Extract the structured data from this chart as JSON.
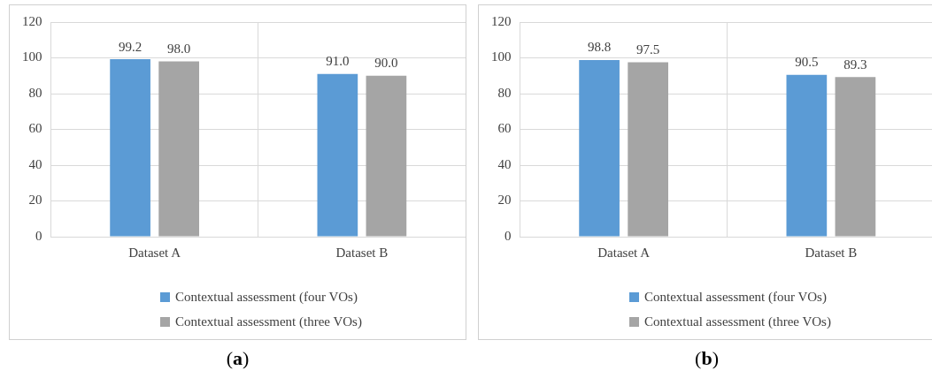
{
  "chart_data": [
    {
      "type": "bar",
      "categories": [
        "Dataset A",
        "Dataset B"
      ],
      "series": [
        {
          "name": "Contextual assessment (four VOs)",
          "color": "#5b9bd5",
          "values": [
            99.2,
            91.0
          ],
          "value_labels": [
            "99.2",
            "91.0"
          ]
        },
        {
          "name": "Contextual assessment (three VOs)",
          "color": "#a5a5a5",
          "values": [
            98.0,
            90.0
          ],
          "value_labels": [
            "98.0",
            "90.0"
          ]
        }
      ],
      "ylim": [
        0,
        120
      ],
      "yticks": [
        0,
        20,
        40,
        60,
        80,
        100,
        120
      ],
      "grid": true,
      "legend": "bottom",
      "annotations": [
        "(a)"
      ]
    },
    {
      "type": "bar",
      "categories": [
        "Dataset A",
        "Dataset B"
      ],
      "series": [
        {
          "name": "Contextual assessment (four VOs)",
          "color": "#5b9bd5",
          "values": [
            98.8,
            90.5
          ],
          "value_labels": [
            "98.8",
            "90.5"
          ]
        },
        {
          "name": "Contextual assessment (three VOs)",
          "color": "#a5a5a5",
          "values": [
            97.5,
            89.3
          ],
          "value_labels": [
            "97.5",
            "89.3"
          ]
        }
      ],
      "ylim": [
        0,
        120
      ],
      "yticks": [
        0,
        20,
        40,
        60,
        80,
        100,
        120
      ],
      "grid": true,
      "legend": "bottom",
      "annotations": [
        "(b)"
      ]
    }
  ]
}
